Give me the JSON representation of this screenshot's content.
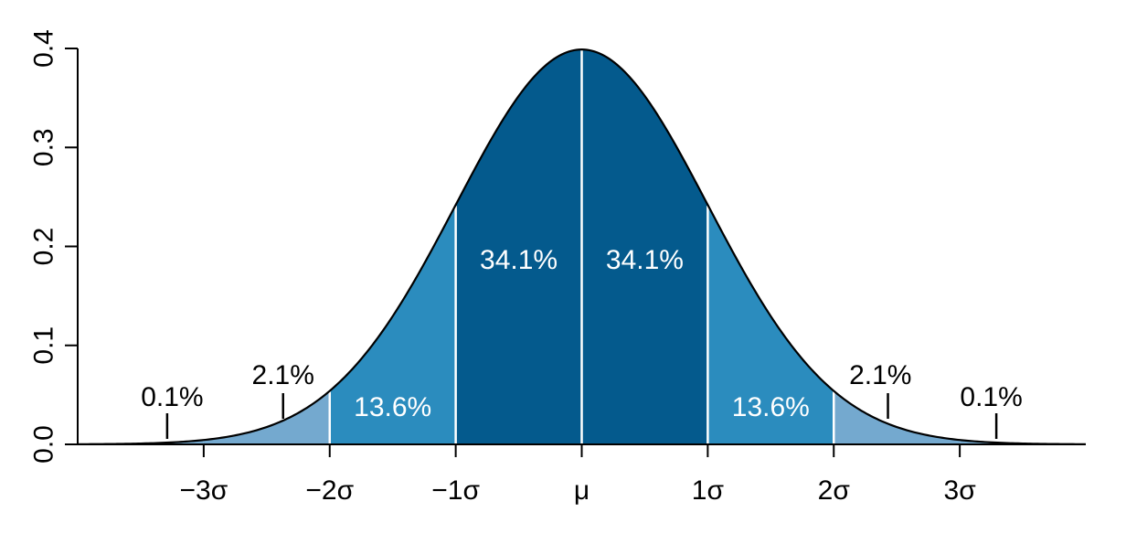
{
  "chart_data": {
    "type": "area",
    "title": "",
    "xlabel": "",
    "ylabel": "",
    "xlim": [
      -4,
      4
    ],
    "ylim": [
      0,
      0.4
    ],
    "y_ticks": [
      0.0,
      0.1,
      0.2,
      0.3,
      0.4
    ],
    "y_tick_labels": [
      "0.0",
      "0.1",
      "0.2",
      "0.3",
      "0.4"
    ],
    "x_ticks": [
      -3,
      -2,
      -1,
      0,
      1,
      2,
      3
    ],
    "x_tick_labels": [
      "−3σ",
      "−2σ",
      "−1σ",
      "μ",
      "1σ",
      "2σ",
      "3σ"
    ],
    "curve": {
      "function": "standard normal probability density",
      "mean": 0,
      "sd": 1,
      "peak_value": 0.399
    },
    "bands": [
      {
        "from": -2,
        "to": -1,
        "label": "13.6%",
        "color": "#2b8cbe"
      },
      {
        "from": -1,
        "to": 0,
        "label": "34.1%",
        "color": "#045a8d"
      },
      {
        "from": 0,
        "to": 1,
        "label": "34.1%",
        "color": "#045a8d"
      },
      {
        "from": 1,
        "to": 2,
        "label": "13.6%",
        "color": "#2b8cbe"
      },
      {
        "from": -3,
        "to": -2,
        "label": "2.1%",
        "color": "#74a9cf"
      },
      {
        "from": 2,
        "to": 3,
        "label": "2.1%",
        "color": "#74a9cf"
      },
      {
        "from": -4,
        "to": -3,
        "label": "0.1%",
        "color": "#74a9cf"
      },
      {
        "from": 3,
        "to": 4,
        "label": "0.1%",
        "color": "#74a9cf"
      }
    ],
    "colors": {
      "outer": "#74a9cf",
      "middle": "#2b8cbe",
      "inner": "#045a8d",
      "divider": "#ffffff",
      "label_on_fill": "#ffffff",
      "label_outside": "#000000"
    }
  }
}
